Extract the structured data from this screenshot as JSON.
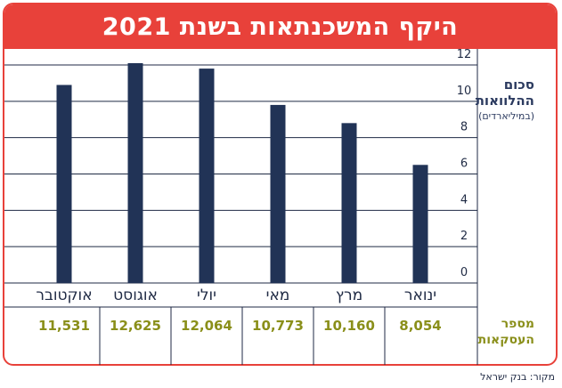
{
  "chart_data": {
    "type": "bar",
    "title": "היקף המשכנתאות בשנת 2021",
    "ylabel": "סכום ההלוואות",
    "ylabel_sub": "(במיליארדים)",
    "yticks": [
      "0",
      "2",
      "4",
      "6",
      "8",
      "10",
      "12"
    ],
    "ylim": [
      0,
      12
    ],
    "categories": [
      "ינואר",
      "מרץ",
      "מאי",
      "יולי",
      "אוגוסט",
      "אוקטובר"
    ],
    "values": [
      6.5,
      8.8,
      9.8,
      11.8,
      12.1,
      10.9
    ],
    "deals_label": "מספר העסקאות",
    "deals": [
      "8,054",
      "10,160",
      "10,773",
      "12,064",
      "12,625",
      "11,531"
    ],
    "colors": {
      "bar": "#213356",
      "accent": "#e8413a",
      "deals": "#8a8f1a"
    },
    "grid": true
  },
  "source": "מקור: בנק ישראל"
}
